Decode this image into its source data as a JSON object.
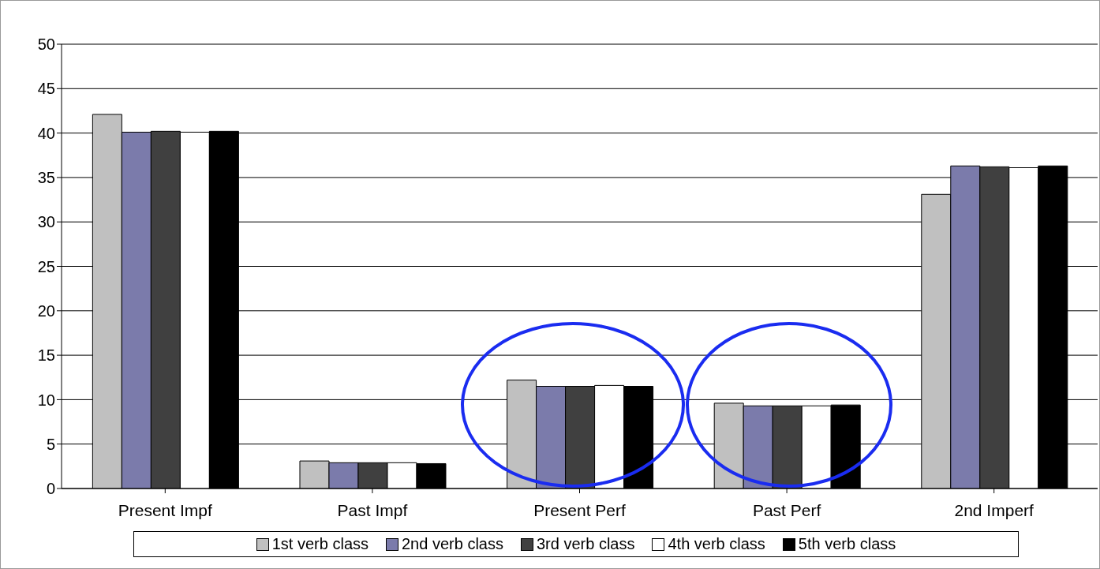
{
  "chart_data": {
    "type": "bar",
    "categories": [
      "Present Impf",
      "Past Impf",
      "Present Perf",
      "Past Perf",
      "2nd Imperf"
    ],
    "series": [
      {
        "name": "1st verb class",
        "color": "#c0c0c0",
        "values": [
          42.1,
          3.1,
          12.2,
          9.6,
          33.1
        ]
      },
      {
        "name": "2nd verb class",
        "color": "#7b7bab",
        "values": [
          40.1,
          2.9,
          11.5,
          9.3,
          36.3
        ]
      },
      {
        "name": "3rd verb class",
        "color": "#404040",
        "values": [
          40.2,
          2.9,
          11.5,
          9.3,
          36.2
        ]
      },
      {
        "name": "4th verb class",
        "color": "#ffffff",
        "values": [
          40.1,
          2.9,
          11.6,
          9.3,
          36.1
        ]
      },
      {
        "name": "5th verb class",
        "color": "#000000",
        "values": [
          40.2,
          2.8,
          11.5,
          9.4,
          36.3
        ]
      }
    ],
    "ylim": [
      0,
      50
    ],
    "yticks": [
      0,
      5,
      10,
      15,
      20,
      25,
      30,
      35,
      40,
      45,
      50
    ],
    "grid": "y",
    "legend": "bottom"
  }
}
